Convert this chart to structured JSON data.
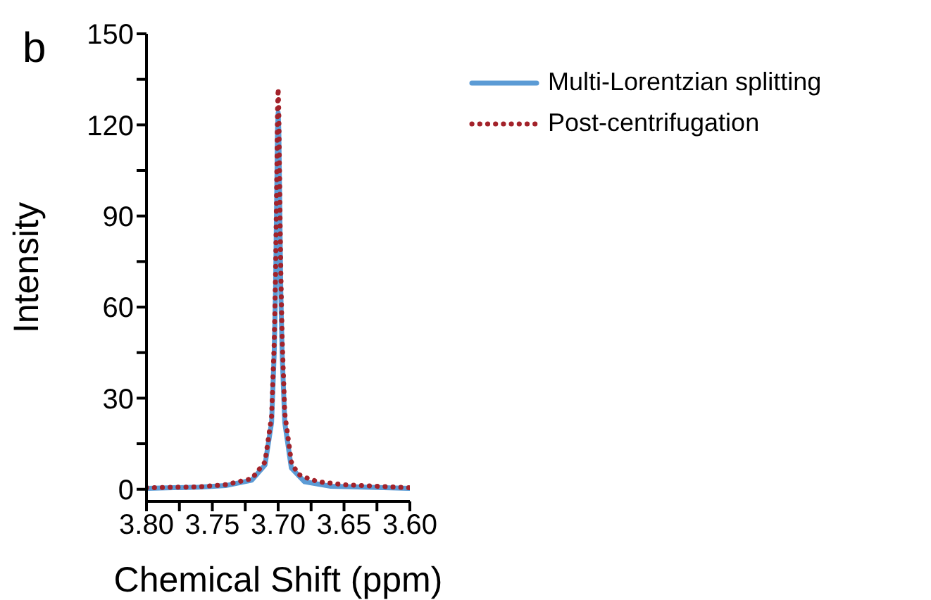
{
  "chart_data": {
    "type": "line",
    "xlabel": "Chemical Shift (ppm)",
    "ylabel": "Intensity",
    "annotations": [
      "b"
    ],
    "xlim": [
      3.8,
      3.6
    ],
    "xticks": [
      {
        "value": 3.8,
        "label": "3.80"
      },
      {
        "value": 3.775,
        "label": null
      },
      {
        "value": 3.75,
        "label": "3.75"
      },
      {
        "value": 3.725,
        "label": null
      },
      {
        "value": 3.7,
        "label": "3.70"
      },
      {
        "value": 3.675,
        "label": null
      },
      {
        "value": 3.65,
        "label": "3.65"
      },
      {
        "value": 3.625,
        "label": null
      },
      {
        "value": 3.6,
        "label": "3.60"
      }
    ],
    "ylim": [
      -4,
      150
    ],
    "yticks": [
      0,
      {
        "value": 15,
        "label": null
      },
      30,
      {
        "value": 45,
        "label": null
      },
      60,
      {
        "value": 75,
        "label": null
      },
      90,
      {
        "value": 105,
        "label": null
      },
      120,
      {
        "value": 135,
        "label": null
      },
      150
    ],
    "grid": false,
    "legend": "top right",
    "marker": "none",
    "series": [
      {
        "name": "Multi-Lorentzian splitting",
        "color": "#5b9bd5",
        "line_style": "solid",
        "x": [
          3.8,
          3.76,
          3.74,
          3.72,
          3.71,
          3.705,
          3.703,
          3.702,
          3.701,
          3.7005,
          3.7,
          3.6995,
          3.699,
          3.698,
          3.697,
          3.695,
          3.69,
          3.68,
          3.66,
          3.6
        ],
        "values": [
          0.3,
          0.7,
          1.2,
          3,
          8,
          22,
          45,
          65,
          100,
          118,
          124,
          118,
          100,
          65,
          45,
          22,
          7,
          2.5,
          1,
          0.3
        ]
      },
      {
        "name": "Post-centrifugation",
        "color": "#a3222a",
        "line_style": "dotted",
        "x": [
          3.8,
          3.76,
          3.74,
          3.72,
          3.71,
          3.705,
          3.703,
          3.702,
          3.701,
          3.7005,
          3.7,
          3.6995,
          3.699,
          3.698,
          3.697,
          3.695,
          3.69,
          3.685,
          3.68,
          3.67,
          3.65,
          3.6
        ],
        "values": [
          0.5,
          0.8,
          1.5,
          3.5,
          9,
          24,
          48,
          70,
          105,
          125,
          132,
          124,
          105,
          72,
          50,
          25,
          9,
          5,
          4,
          2.5,
          1.5,
          0.5
        ]
      }
    ]
  }
}
